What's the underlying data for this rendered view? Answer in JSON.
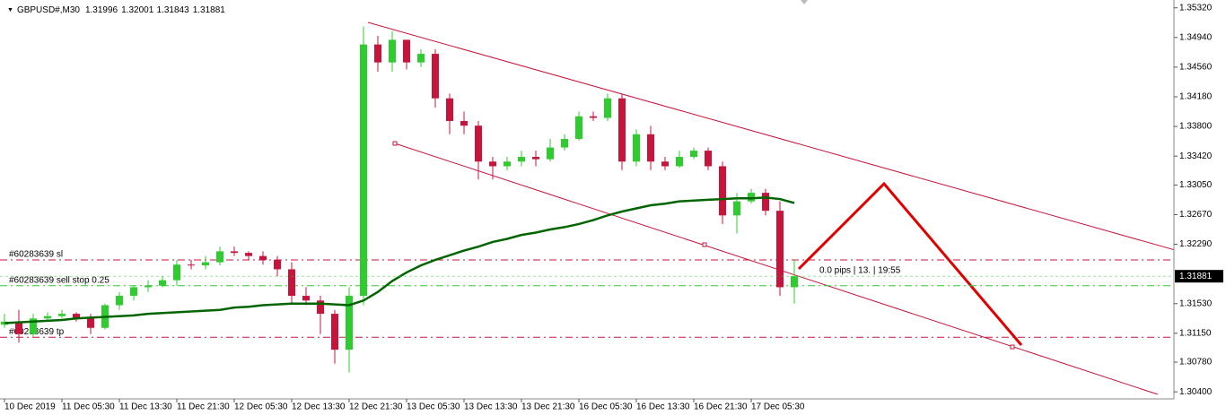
{
  "chart_data": {
    "type": "candlestick",
    "title": "GBPUSD#,M30",
    "header_quote": [
      1.31996,
      1.32001,
      1.31843,
      1.31881
    ],
    "categories": [
      "10 Dec 2019",
      null,
      null,
      null,
      "11 Dec 05:30",
      null,
      null,
      null,
      "11 Dec 13:30",
      null,
      null,
      null,
      "11 Dec 21:30",
      null,
      null,
      null,
      "12 Dec 05:30",
      null,
      null,
      null,
      "12 Dec 13:30",
      null,
      null,
      null,
      "12 Dec 21:30",
      null,
      null,
      null,
      "13 Dec 05:30",
      null,
      null,
      null,
      "13 Dec 13:30",
      null,
      null,
      null,
      "13 Dec 21:30",
      null,
      null,
      null,
      "16 Dec 05:30",
      null,
      null,
      null,
      "16 Dec 13:30",
      null,
      null,
      null,
      "16 Dec 21:30",
      null,
      null,
      null,
      "17 Dec 05:30",
      null,
      null,
      null
    ],
    "open": [
      1.3126,
      1.313,
      1.3114,
      1.3134,
      1.3137,
      1.314,
      1.3134,
      1.3122,
      1.3151,
      1.3163,
      1.3174,
      1.3176,
      1.3183,
      1.3203,
      1.3202,
      1.3206,
      1.322,
      1.3218,
      1.3214,
      1.3209,
      1.3197,
      1.3163,
      1.3157,
      1.314,
      1.3094,
      1.3163,
      1.3485,
      1.3462,
      1.3491,
      1.3462,
      1.3473,
      1.3416,
      1.3387,
      1.3381,
      1.3335,
      1.3329,
      1.3335,
      1.3341,
      1.3338,
      1.3353,
      1.3364,
      1.3393,
      1.3391,
      1.3416,
      1.3335,
      1.337,
      1.3335,
      1.3329,
      1.3341,
      1.3349,
      1.3329,
      1.3266,
      1.3284,
      1.3295,
      1.3272,
      1.3174
    ],
    "high": [
      1.314,
      1.3145,
      1.314,
      1.3142,
      1.3145,
      1.3142,
      1.314,
      1.3153,
      1.3168,
      1.3176,
      1.3183,
      1.3188,
      1.3209,
      1.3209,
      1.3214,
      1.3226,
      1.3226,
      1.322,
      1.322,
      1.3214,
      1.3206,
      1.3174,
      1.3163,
      1.3145,
      1.3174,
      1.3508,
      1.3496,
      1.3502,
      1.3491,
      1.3479,
      1.3479,
      1.3422,
      1.3399,
      1.3387,
      1.3341,
      1.3341,
      1.3349,
      1.3349,
      1.3364,
      1.337,
      1.3399,
      1.3399,
      1.3422,
      1.3422,
      1.3376,
      1.3381,
      1.3341,
      1.3349,
      1.3353,
      1.3353,
      1.3335,
      1.3295,
      1.33,
      1.33,
      1.3284,
      1.3209
    ],
    "low": [
      1.3122,
      1.3103,
      1.3111,
      1.313,
      1.3134,
      1.313,
      1.3114,
      1.312,
      1.3145,
      1.3157,
      1.3168,
      1.3174,
      1.3176,
      1.3197,
      1.3197,
      1.3202,
      1.3214,
      1.3209,
      1.3203,
      1.3188,
      1.3153,
      1.3151,
      1.3114,
      1.3076,
      1.3065,
      1.3151,
      1.345,
      1.345,
      1.3453,
      1.3456,
      1.3404,
      1.337,
      1.337,
      1.3312,
      1.3312,
      1.3324,
      1.3329,
      1.3329,
      1.3335,
      1.3349,
      1.3362,
      1.3387,
      1.3387,
      1.3324,
      1.3329,
      1.3324,
      1.3324,
      1.3327,
      1.3338,
      1.3324,
      1.3255,
      1.3243,
      1.3281,
      1.3266,
      1.3163,
      1.3153
    ],
    "close": [
      1.313,
      1.3114,
      1.3134,
      1.3137,
      1.314,
      1.3134,
      1.3122,
      1.3151,
      1.3163,
      1.3174,
      1.3176,
      1.3183,
      1.3203,
      1.3202,
      1.3206,
      1.322,
      1.3218,
      1.3214,
      1.3209,
      1.3197,
      1.3163,
      1.3157,
      1.314,
      1.3094,
      1.3163,
      1.3485,
      1.3462,
      1.3491,
      1.3462,
      1.3473,
      1.3416,
      1.3387,
      1.3381,
      1.3335,
      1.3329,
      1.3335,
      1.3341,
      1.3338,
      1.3353,
      1.3364,
      1.3393,
      1.3391,
      1.3416,
      1.3335,
      1.337,
      1.3335,
      1.3329,
      1.3341,
      1.3349,
      1.3329,
      1.3266,
      1.3284,
      1.3295,
      1.3272,
      1.3174,
      1.31881
    ],
    "up_color": "#2ecc2e",
    "down_color": "#c8143c",
    "ma": {
      "color": "#006400",
      "values": [
        1.3128,
        1.3129,
        1.313,
        1.3131,
        1.3132,
        1.3134,
        1.3135,
        1.3136,
        1.3137,
        1.3138,
        1.314,
        1.3141,
        1.3142,
        1.3143,
        1.3144,
        1.3145,
        1.3148,
        1.3149,
        1.3151,
        1.3152,
        1.3153,
        1.3153,
        1.3153,
        1.3152,
        1.3151,
        1.3157,
        1.3168,
        1.3182,
        1.3193,
        1.3202,
        1.3209,
        1.3215,
        1.3221,
        1.3226,
        1.3232,
        1.3236,
        1.3241,
        1.3244,
        1.3248,
        1.3251,
        1.3255,
        1.326,
        1.3266,
        1.3271,
        1.3275,
        1.3279,
        1.3281,
        1.3284,
        1.3285,
        1.3286,
        1.3287,
        1.3288,
        1.3288,
        1.3289,
        1.3287,
        1.3282
      ]
    },
    "ylim": [
      1.3031,
      1.3542
    ],
    "yticks": [
      {
        "value": 1.3532,
        "label": "1.35320"
      },
      {
        "value": 1.3494,
        "label": "1.34940"
      },
      {
        "value": 1.3456,
        "label": "1.34560"
      },
      {
        "value": 1.3418,
        "label": "1.34180"
      },
      {
        "value": 1.338,
        "label": "1.33800"
      },
      {
        "value": 1.3342,
        "label": "1.33420"
      },
      {
        "value": 1.3305,
        "label": "1.33050"
      },
      {
        "value": 1.3267,
        "label": "1.32670"
      },
      {
        "value": 1.3229,
        "label": "1.32290"
      },
      {
        "value": 1.3153,
        "label": "1.31530"
      },
      {
        "value": 1.3115,
        "label": "1.31150"
      },
      {
        "value": 1.3078,
        "label": "1.30780"
      },
      {
        "value": 1.304,
        "label": "1.30400"
      }
    ],
    "last_price": 1.31881,
    "orders": [
      {
        "label": "#60283639 sl",
        "price": 1.3209,
        "color": "#c8143c"
      },
      {
        "label": "#60283639 sell stop 0.25",
        "price": 1.3176,
        "color": "#2ecc2e"
      },
      {
        "label": "#60283639 tp",
        "price": 1.311,
        "color": "#c8143c"
      }
    ],
    "annotation": "0.0 pips | 13. | 19:55"
  }
}
